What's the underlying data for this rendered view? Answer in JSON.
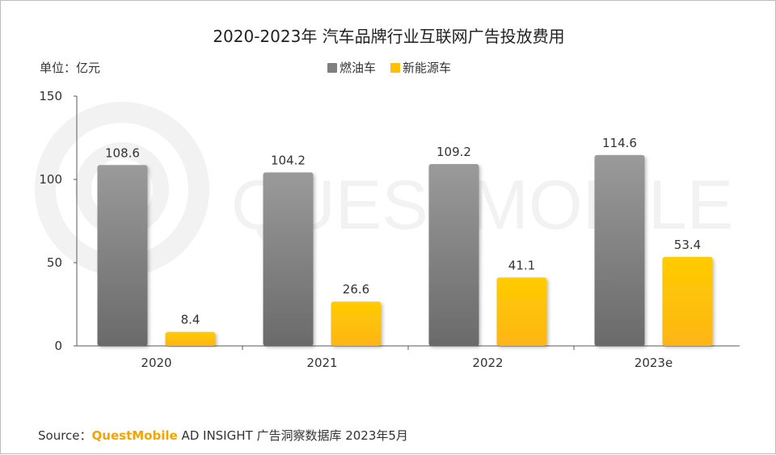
{
  "title": "2020-2023年 汽车品牌行业互联网广告投放费用",
  "unit_label": "单位：亿元",
  "source": {
    "prefix": "Source：",
    "brand": "QuestMobile",
    "suffix": " AD INSIGHT 广告洞察数据库 2023年5月"
  },
  "watermark": "QUESTMOBILE",
  "colors": {
    "fuel": "#7f7f7f",
    "nev": "#ffc000",
    "axis": "#595959",
    "label": "#333333",
    "watermark": "#f2f2f2"
  },
  "chart_data": {
    "type": "bar",
    "title": "2020-2023年 汽车品牌行业互联网广告投放费用",
    "xlabel": "",
    "ylabel": "单位：亿元",
    "ylim": [
      0,
      150
    ],
    "yticks": [
      0,
      50,
      100,
      150
    ],
    "grid": false,
    "legend_position": "top-center",
    "categories": [
      "2020",
      "2021",
      "2022",
      "2023e"
    ],
    "series": [
      {
        "name": "燃油车",
        "values": [
          108.6,
          104.2,
          109.2,
          114.6
        ],
        "color": "#7f7f7f"
      },
      {
        "name": "新能源车",
        "values": [
          8.4,
          26.6,
          41.1,
          53.4
        ],
        "color": "#ffc000"
      }
    ]
  }
}
